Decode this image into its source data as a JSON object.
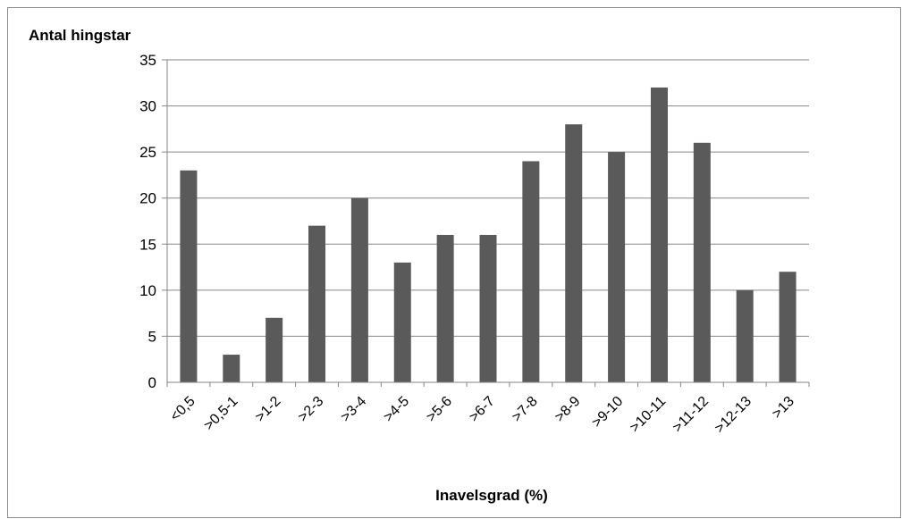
{
  "chart_data": {
    "type": "bar",
    "title": "",
    "ylabel": "Antal hingstar",
    "xlabel": "Inavelsgrad (%)",
    "ylim": [
      0,
      35
    ],
    "ytick_step": 5,
    "grid": true,
    "legend": "none",
    "bar_color": "#5a5a5a",
    "grid_color": "#868686",
    "categories": [
      "<0,5",
      ">0,5-1",
      ">1-2",
      ">2-3",
      ">3-4",
      ">4-5",
      ">5-6",
      ">6-7",
      ">7-8",
      ">8-9",
      ">9-10",
      ">10-11",
      ">11-12",
      ">12-13",
      ">13"
    ],
    "values": [
      23,
      3,
      7,
      17,
      20,
      13,
      16,
      16,
      24,
      28,
      25,
      32,
      26,
      10,
      12
    ]
  }
}
